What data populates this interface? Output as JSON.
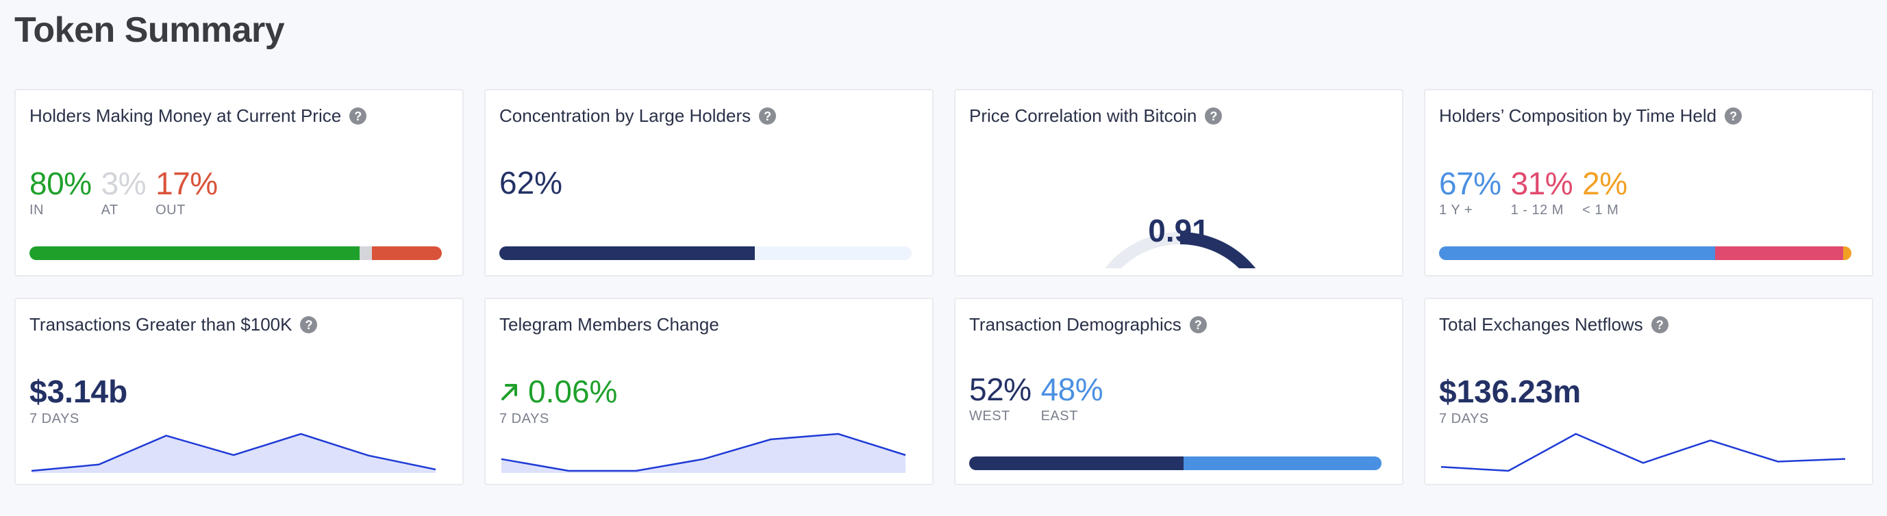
{
  "page": {
    "title": "Token Summary"
  },
  "colors": {
    "green": "#1fa02b",
    "gray_at": "#d3d5da",
    "red": "#d9533a",
    "navy": "#233165",
    "light_blue_track": "#eef4fd",
    "blue": "#4a90e2",
    "pink": "#e04a6e",
    "orange": "#f2a024",
    "spark_line": "#1f3bd6",
    "spark_fill": "#dde1fb"
  },
  "cards": {
    "holders_money": {
      "title": "Holders Making Money at Current Price",
      "in": {
        "value": "80%",
        "label": "IN",
        "fraction": 0.8
      },
      "at": {
        "value": "3%",
        "label": "AT",
        "fraction": 0.03
      },
      "out": {
        "value": "17%",
        "label": "OUT",
        "fraction": 0.17
      }
    },
    "concentration": {
      "title": "Concentration by Large Holders",
      "value": "62%",
      "fraction": 0.62
    },
    "btc_correlation": {
      "title": "Price Correlation with Bitcoin",
      "value": "0.91",
      "level": 0.91
    },
    "time_held": {
      "title": "Holders’ Composition by Time Held",
      "long": {
        "value": "67%",
        "label": "1 Y +",
        "fraction": 0.67
      },
      "mid": {
        "value": "31%",
        "label": "1 - 12 M",
        "fraction": 0.31
      },
      "short": {
        "value": "2%",
        "label": "< 1 M",
        "fraction": 0.02
      }
    },
    "large_tx": {
      "title": "Transactions Greater than $100K",
      "value": "$3.14b",
      "period": "7 DAYS",
      "spark": [
        1.0,
        3.8,
        16.6,
        8.0,
        17.4,
        7.8,
        1.6
      ]
    },
    "telegram": {
      "title": "Telegram Members Change",
      "value": "0.06%",
      "period": "7 DAYS",
      "spark": [
        4.0,
        -2.0,
        -2.0,
        4.0,
        14.0,
        16.8,
        6.0
      ]
    },
    "demographics": {
      "title": "Transaction Demographics",
      "west": {
        "value": "52%",
        "label": "WEST",
        "fraction": 0.52
      },
      "east": {
        "value": "48%",
        "label": "EAST",
        "fraction": 0.48
      }
    },
    "netflows": {
      "title": "Total Exchanges Netflows",
      "value": "$136.23m",
      "period": "7 DAYS",
      "spark": [
        2.0,
        0.5,
        14.5,
        3.5,
        12.0,
        4.0,
        5.0
      ]
    }
  }
}
